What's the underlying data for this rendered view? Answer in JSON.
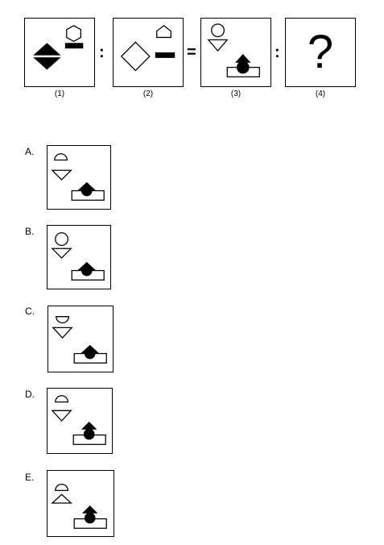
{
  "sequence": {
    "separators": [
      ":",
      "=",
      ":"
    ],
    "captions": [
      "(1)",
      "(2)",
      "(3)",
      "(4)"
    ],
    "question_mark": "?"
  },
  "options": [
    {
      "label": "A."
    },
    {
      "label": "B."
    },
    {
      "label": "C."
    },
    {
      "label": "D."
    },
    {
      "label": "E."
    }
  ],
  "colors": {
    "stroke": "#000000",
    "fill": "#000000",
    "background": "#ffffff"
  }
}
